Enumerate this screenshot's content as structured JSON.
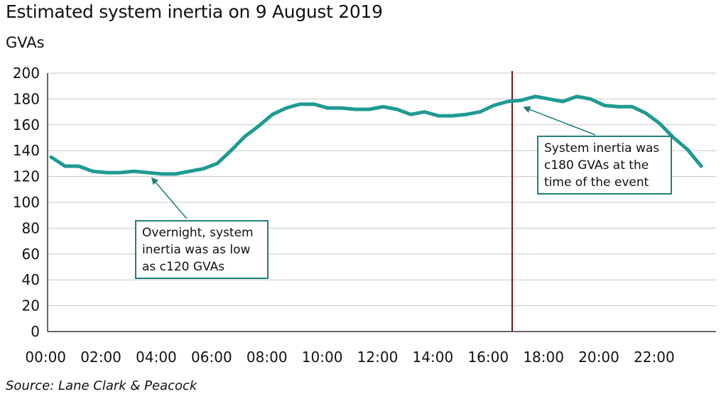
{
  "chart_data": {
    "type": "line",
    "title": "Estimated system inertia on 9 August 2019",
    "ylabel": "GVAs",
    "xlabel": "",
    "ylim": [
      0,
      200
    ],
    "yticks": [
      0,
      20,
      40,
      60,
      80,
      100,
      120,
      140,
      160,
      180,
      200
    ],
    "xlim": [
      "00:00",
      "23:30"
    ],
    "xticks": [
      "00:00",
      "02:00",
      "04:00",
      "06:00",
      "08:00",
      "10:00",
      "12:00",
      "14:00",
      "16:00",
      "18:00",
      "20:00",
      "22:00"
    ],
    "grid": true,
    "line_color": "#1f9a93",
    "event_line": {
      "x": "16:52",
      "color": "#6b1a1a"
    },
    "series": [
      {
        "x": [
          "00:00",
          "00:30",
          "01:00",
          "01:30",
          "02:00",
          "02:30",
          "03:00",
          "03:30",
          "04:00",
          "04:30",
          "05:00",
          "05:30",
          "06:00",
          "06:30",
          "07:00",
          "07:30",
          "08:00",
          "08:30",
          "09:00",
          "09:30",
          "10:00",
          "10:30",
          "11:00",
          "11:30",
          "12:00",
          "12:30",
          "13:00",
          "13:30",
          "14:00",
          "14:30",
          "15:00",
          "15:30",
          "16:00",
          "16:30",
          "17:00",
          "17:30",
          "18:00",
          "18:30",
          "19:00",
          "19:30",
          "20:00",
          "20:30",
          "21:00",
          "21:30",
          "22:00",
          "22:30",
          "23:00",
          "23:30"
        ],
        "values": [
          135,
          128,
          128,
          124,
          123,
          123,
          124,
          123,
          122,
          122,
          124,
          126,
          130,
          140,
          151,
          159,
          168,
          173,
          176,
          176,
          173,
          173,
          172,
          172,
          174,
          172,
          168,
          170,
          167,
          167,
          168,
          170,
          175,
          178,
          179,
          182,
          180,
          178,
          182,
          180,
          175,
          174,
          174,
          169,
          161,
          150,
          141,
          128
        ]
      }
    ],
    "annotations": [
      {
        "text": "Overnight, system\ninertia was as low\nas c120 GVAs",
        "target": {
          "x": "03:45",
          "y": 123
        }
      },
      {
        "text": "System inertia was\nc180 GVAs at the\ntime of the event",
        "target": {
          "x": "17:00",
          "y": 180
        }
      }
    ]
  },
  "source": "Source: Lane Clark & Peacock"
}
